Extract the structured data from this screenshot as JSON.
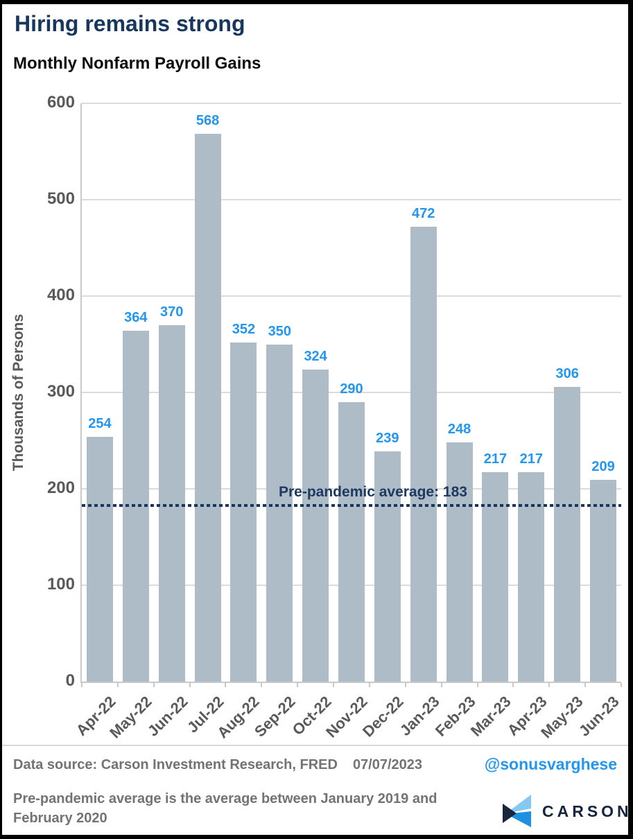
{
  "header": {
    "title": "Hiring remains strong",
    "subtitle": "Monthly Nonfarm Payroll Gains"
  },
  "chart_data": {
    "type": "bar",
    "title": "Monthly Nonfarm Payroll Gains",
    "categories": [
      "Apr-22",
      "May-22",
      "Jun-22",
      "Jul-22",
      "Aug-22",
      "Sep-22",
      "Oct-22",
      "Nov-22",
      "Dec-22",
      "Jan-23",
      "Feb-23",
      "Mar-23",
      "Apr-23",
      "May-23",
      "Jun-23"
    ],
    "values": [
      254,
      364,
      370,
      568,
      352,
      350,
      324,
      290,
      239,
      472,
      248,
      217,
      217,
      306,
      209
    ],
    "xlabel": "",
    "ylabel": "Thousands of Persons",
    "ylim": [
      0,
      600
    ],
    "yticks": [
      0,
      100,
      200,
      300,
      400,
      500,
      600
    ],
    "grid": true,
    "legend": "none",
    "reference_line": {
      "value": 183,
      "label": "Pre-pandemic average: 183",
      "style": "dotted"
    }
  },
  "footer": {
    "source_label": "Data source: Carson Investment Research, FRED",
    "source_date": "07/07/2023",
    "handle": "@sonusvarghese",
    "note": "Pre-pandemic average is the average between January 2019 and February 2020",
    "logo_text": "CARSON"
  },
  "colors": {
    "title_navy": "#17375E",
    "bar_fill": "#AEBCC7",
    "value_label_blue": "#2196F3",
    "axis_text_gray": "#595959",
    "footer_gray": "#737373",
    "reference_navy": "#17375E",
    "logo_light_blue": "#85C9F2",
    "logo_blue": "#1E90E2",
    "logo_navy": "#17253E"
  }
}
